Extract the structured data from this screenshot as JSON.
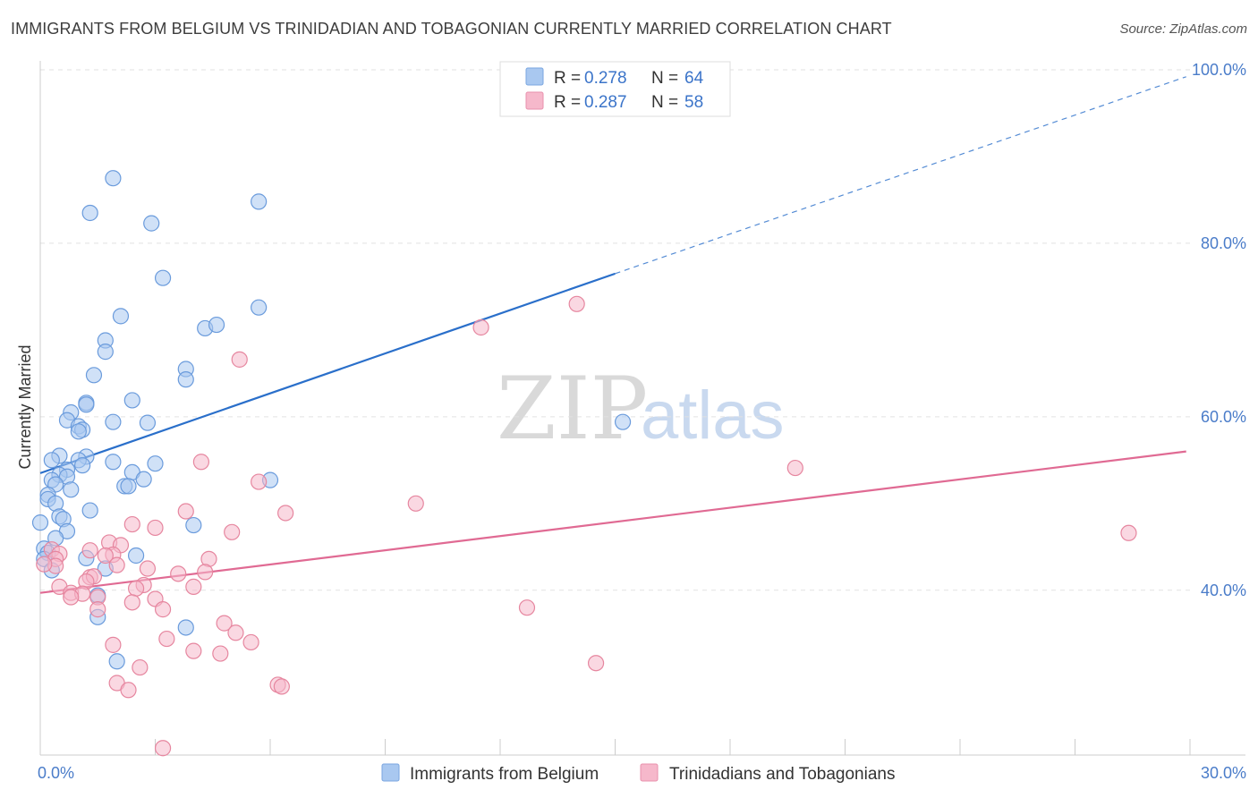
{
  "title": "IMMIGRANTS FROM BELGIUM VS TRINIDADIAN AND TOBAGONIAN CURRENTLY MARRIED CORRELATION CHART",
  "source": "Source: ZipAtlas.com",
  "watermark": {
    "part1": "ZIP",
    "part2": "atlas"
  },
  "legend": {
    "rows": [
      {
        "r_label": "R = ",
        "r_value": "0.278",
        "n_label": "N = ",
        "n_value": "64",
        "color": "#a9c8f0",
        "stroke": "#7aa6e0"
      },
      {
        "r_label": "R = ",
        "r_value": "0.287",
        "n_label": "N = ",
        "n_value": "58",
        "color": "#f6b8cb",
        "stroke": "#e891ad"
      }
    ]
  },
  "chart_data": {
    "type": "scatter",
    "xlabel": "",
    "ylabel": "Currently Married",
    "xlim": [
      0,
      30
    ],
    "ylim": [
      21,
      100
    ],
    "x_tick_labels": [
      {
        "value": 0,
        "label": "0.0%"
      },
      {
        "value": 30,
        "label": "30.0%"
      }
    ],
    "y_tick_labels": [
      {
        "value": 100,
        "label": "100.0%"
      },
      {
        "value": 80,
        "label": "80.0%"
      },
      {
        "value": 60,
        "label": "60.0%"
      },
      {
        "value": 40,
        "label": "40.0%"
      }
    ],
    "grid": true,
    "series": [
      {
        "name": "Immigrants from Belgium",
        "color": "#a9c8f0",
        "stroke": "#6a9bdc",
        "line_color": "#2a6fca",
        "trend": {
          "x0": 0,
          "y0": 53.5,
          "x1": 15,
          "y1": 76.5,
          "dash_to_x": 29.9,
          "dash_to_y": 99.2
        },
        "points": [
          [
            1.9,
            87.5
          ],
          [
            1.3,
            83.5
          ],
          [
            2.9,
            82.3
          ],
          [
            5.7,
            84.8
          ],
          [
            3.2,
            76.0
          ],
          [
            2.1,
            71.6
          ],
          [
            5.7,
            72.6
          ],
          [
            4.3,
            70.2
          ],
          [
            1.7,
            68.8
          ],
          [
            1.7,
            67.5
          ],
          [
            4.6,
            70.6
          ],
          [
            1.4,
            64.8
          ],
          [
            3.8,
            65.5
          ],
          [
            3.8,
            64.3
          ],
          [
            1.2,
            61.6
          ],
          [
            1.2,
            61.4
          ],
          [
            2.4,
            61.9
          ],
          [
            0.8,
            60.5
          ],
          [
            0.7,
            59.6
          ],
          [
            1.9,
            59.4
          ],
          [
            2.8,
            59.3
          ],
          [
            15.2,
            59.4
          ],
          [
            1.0,
            58.9
          ],
          [
            1.1,
            58.5
          ],
          [
            1.0,
            58.3
          ],
          [
            0.5,
            55.5
          ],
          [
            1.2,
            55.4
          ],
          [
            0.3,
            55.0
          ],
          [
            1.0,
            55.0
          ],
          [
            1.9,
            54.8
          ],
          [
            3.0,
            54.6
          ],
          [
            1.1,
            54.4
          ],
          [
            0.7,
            53.9
          ],
          [
            2.4,
            53.6
          ],
          [
            0.5,
            53.3
          ],
          [
            0.7,
            53.1
          ],
          [
            0.3,
            52.7
          ],
          [
            2.7,
            52.8
          ],
          [
            6.0,
            52.7
          ],
          [
            0.4,
            52.2
          ],
          [
            2.2,
            52.0
          ],
          [
            2.3,
            52.0
          ],
          [
            0.8,
            51.6
          ],
          [
            0.2,
            51.0
          ],
          [
            0.2,
            50.5
          ],
          [
            0.4,
            50.0
          ],
          [
            1.3,
            49.2
          ],
          [
            0.5,
            48.5
          ],
          [
            0.6,
            48.2
          ],
          [
            0.0,
            47.8
          ],
          [
            4.0,
            47.5
          ],
          [
            0.7,
            46.8
          ],
          [
            0.4,
            46.0
          ],
          [
            0.1,
            44.8
          ],
          [
            0.2,
            44.3
          ],
          [
            0.1,
            43.6
          ],
          [
            2.5,
            44.0
          ],
          [
            1.2,
            43.7
          ],
          [
            1.7,
            42.5
          ],
          [
            0.3,
            42.3
          ],
          [
            1.5,
            39.4
          ],
          [
            1.5,
            36.9
          ],
          [
            3.8,
            35.7
          ],
          [
            2.0,
            31.8
          ]
        ]
      },
      {
        "name": "Trinidadians and Tobagonians",
        "color": "#f6b8cb",
        "stroke": "#e6869f",
        "line_color": "#e06a93",
        "trend": {
          "x0": 0,
          "y0": 39.7,
          "x1": 29.9,
          "y1": 56.0
        },
        "points": [
          [
            14.0,
            73.0
          ],
          [
            11.5,
            70.3
          ],
          [
            5.2,
            66.6
          ],
          [
            4.2,
            54.8
          ],
          [
            19.7,
            54.1
          ],
          [
            5.7,
            52.5
          ],
          [
            9.8,
            50.0
          ],
          [
            3.8,
            49.1
          ],
          [
            6.4,
            48.9
          ],
          [
            2.4,
            47.6
          ],
          [
            3.0,
            47.2
          ],
          [
            5.0,
            46.7
          ],
          [
            28.4,
            46.6
          ],
          [
            1.8,
            45.5
          ],
          [
            2.1,
            45.2
          ],
          [
            0.3,
            44.7
          ],
          [
            1.3,
            44.6
          ],
          [
            0.5,
            44.2
          ],
          [
            0.4,
            43.6
          ],
          [
            4.4,
            43.6
          ],
          [
            1.9,
            44.1
          ],
          [
            1.7,
            44.0
          ],
          [
            2.0,
            42.9
          ],
          [
            0.4,
            42.8
          ],
          [
            2.8,
            42.5
          ],
          [
            4.3,
            42.1
          ],
          [
            3.6,
            41.9
          ],
          [
            1.3,
            41.5
          ],
          [
            1.4,
            41.6
          ],
          [
            1.2,
            41.0
          ],
          [
            2.7,
            40.6
          ],
          [
            0.5,
            40.4
          ],
          [
            2.5,
            40.2
          ],
          [
            4.0,
            40.4
          ],
          [
            0.8,
            39.7
          ],
          [
            1.1,
            39.6
          ],
          [
            1.5,
            39.2
          ],
          [
            0.8,
            39.2
          ],
          [
            3.0,
            39.0
          ],
          [
            2.4,
            38.6
          ],
          [
            1.5,
            37.8
          ],
          [
            3.2,
            37.8
          ],
          [
            12.7,
            38.0
          ],
          [
            4.8,
            36.2
          ],
          [
            5.1,
            35.1
          ],
          [
            3.3,
            34.4
          ],
          [
            5.5,
            34.0
          ],
          [
            1.9,
            33.7
          ],
          [
            4.0,
            33.0
          ],
          [
            4.7,
            32.7
          ],
          [
            14.5,
            31.6
          ],
          [
            2.6,
            31.1
          ],
          [
            2.0,
            29.3
          ],
          [
            2.3,
            28.5
          ],
          [
            6.2,
            29.1
          ],
          [
            6.3,
            28.9
          ],
          [
            3.2,
            21.8
          ],
          [
            0.1,
            43.0
          ]
        ]
      }
    ],
    "legend_position": "top-center"
  }
}
